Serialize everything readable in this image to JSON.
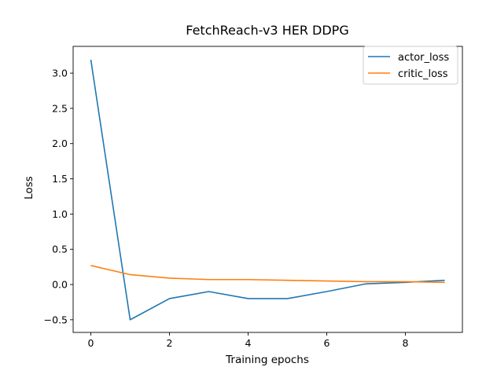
{
  "chart_data": {
    "type": "line",
    "title": "FetchReach-v3 HER DDPG",
    "xlabel": "Training epochs",
    "ylabel": "Loss",
    "x": [
      0,
      1,
      2,
      3,
      4,
      5,
      6,
      7,
      8,
      9
    ],
    "xlim": [
      -0.45,
      9.45
    ],
    "ylim": [
      -0.68,
      3.38
    ],
    "xticks": [
      0,
      2,
      4,
      6,
      8
    ],
    "yticks": [
      -0.5,
      0.0,
      0.5,
      1.0,
      1.5,
      2.0,
      2.5,
      3.0
    ],
    "ytick_labels": [
      "−0.5",
      "0.0",
      "0.5",
      "1.0",
      "1.5",
      "2.0",
      "2.5",
      "3.0"
    ],
    "grid": false,
    "legend_position": "top-right",
    "series": [
      {
        "name": "actor_loss",
        "color": "#1f77b4",
        "values": [
          3.19,
          -0.5,
          -0.2,
          -0.1,
          -0.2,
          -0.2,
          -0.1,
          0.01,
          0.03,
          0.06
        ]
      },
      {
        "name": "critic_loss",
        "color": "#ff7f0e",
        "values": [
          0.27,
          0.14,
          0.09,
          0.07,
          0.07,
          0.06,
          0.05,
          0.04,
          0.04,
          0.03
        ]
      }
    ]
  }
}
